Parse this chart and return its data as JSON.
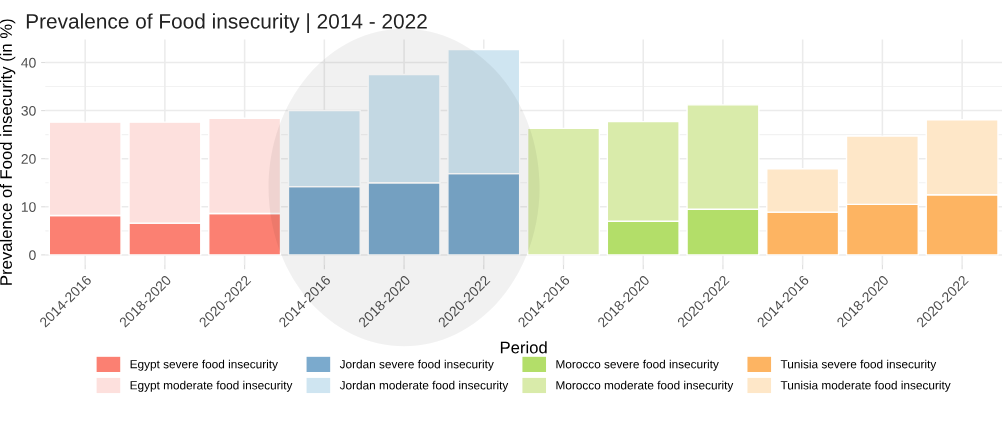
{
  "chart_data": {
    "type": "bar",
    "title": "Prevalence of Food insecurity | 2014 - 2022",
    "xlabel": "Period",
    "ylabel": "Prevalence of Food insecurity (in %)",
    "categories": [
      "2014-2016",
      "2018-2020",
      "2020-2022",
      "2014-2016",
      "2018-2020",
      "2020-2022",
      "2014-2016",
      "2018-2020",
      "2020-2022",
      "2014-2016",
      "2018-2020",
      "2020-2022"
    ],
    "stacked": true,
    "series": [
      {
        "name": "Egypt severe food insecurity",
        "color": "#fb8072",
        "values": [
          8.2,
          6.6,
          8.6,
          null,
          null,
          null,
          null,
          null,
          null,
          null,
          null,
          null
        ]
      },
      {
        "name": "Egypt moderate food insecurity",
        "color": "#fde0dd",
        "values": [
          19.4,
          21.0,
          19.8,
          null,
          null,
          null,
          null,
          null,
          null,
          null,
          null,
          null
        ]
      },
      {
        "name": "Jordan severe food insecurity",
        "color": "#7baacd",
        "values": [
          null,
          null,
          null,
          14.2,
          15.0,
          16.9,
          null,
          null,
          null,
          null,
          null,
          null
        ]
      },
      {
        "name": "Jordan moderate food insecurity",
        "color": "#cfe5f1",
        "values": [
          null,
          null,
          null,
          15.8,
          22.5,
          25.8,
          null,
          null,
          null,
          null,
          null,
          null
        ]
      },
      {
        "name": "Morocco severe food insecurity",
        "color": "#b3de69",
        "values": [
          null,
          null,
          null,
          null,
          null,
          null,
          null,
          7.0,
          9.5,
          null,
          null,
          null
        ]
      },
      {
        "name": "Morocco moderate food insecurity",
        "color": "#d9ebaa",
        "values": [
          null,
          null,
          null,
          null,
          null,
          null,
          26.3,
          20.7,
          21.7,
          null,
          null,
          null
        ]
      },
      {
        "name": "Tunisia severe food insecurity",
        "color": "#fdb462",
        "values": [
          null,
          null,
          null,
          null,
          null,
          null,
          null,
          null,
          null,
          8.9,
          10.5,
          12.5
        ]
      },
      {
        "name": "Tunisia moderate food insecurity",
        "color": "#fee7c8",
        "values": [
          null,
          null,
          null,
          null,
          null,
          null,
          null,
          null,
          null,
          9.0,
          14.2,
          15.6
        ]
      }
    ],
    "ylim": [
      -2.1,
      44.8
    ],
    "yticks": [
      0,
      10,
      20,
      30,
      40
    ],
    "grid": true,
    "legend": "bottom"
  }
}
